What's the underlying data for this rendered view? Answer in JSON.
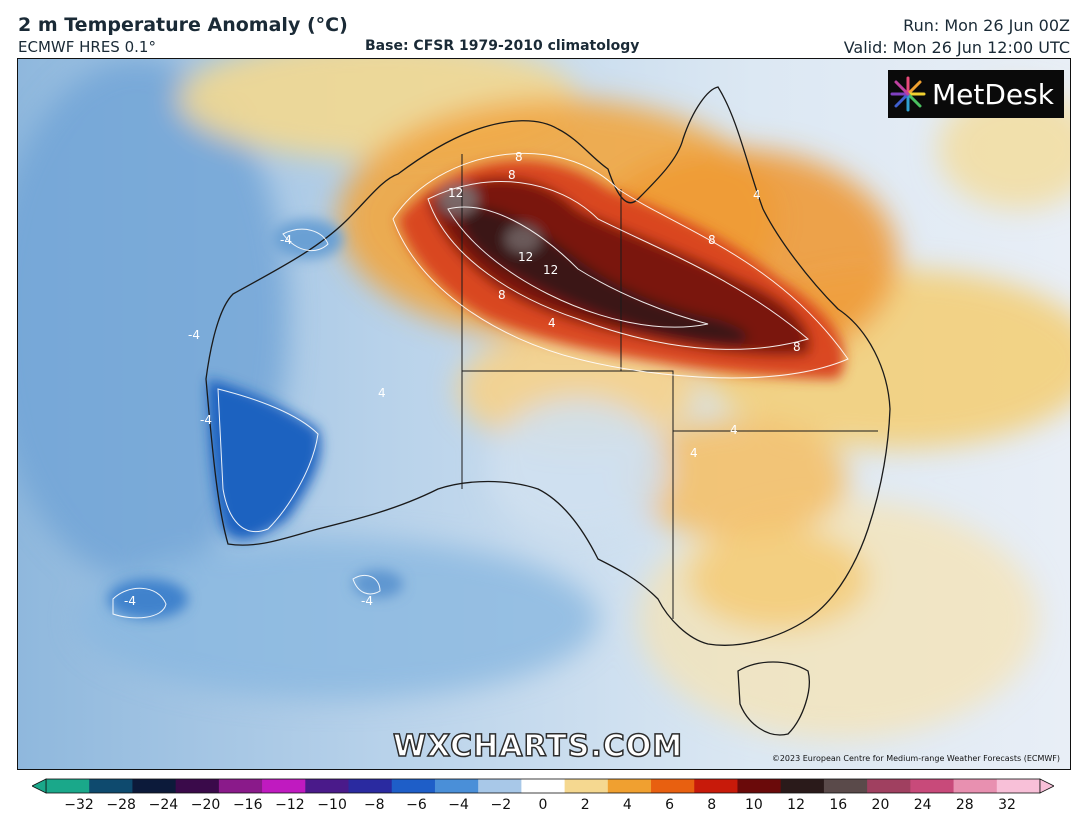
{
  "header": {
    "title": "2 m Temperature Anomaly (°C)",
    "model": "ECMWF HRES 0.1°",
    "base": "Base: CFSR 1979-2010 climatology",
    "run": "Run: Mon 26 Jun 00Z",
    "valid": "Valid: Mon 26 Jun 12:00 UTC"
  },
  "logo": {
    "text": "MetDesk",
    "icon": "metdesk-burst-icon"
  },
  "watermark": "WXCHARTS.COM",
  "credit": "©2023 European Centre for Medium-range Weather Forecasts (ECMWF)",
  "contour_labels": [
    "12",
    "8",
    "8",
    "12",
    "12",
    "8",
    "4",
    "8",
    "8",
    "4",
    "4",
    "4",
    "4",
    "-4",
    "-4",
    "-4",
    "-4",
    "-4"
  ],
  "colorbar": {
    "ticks": [
      "−32",
      "−28",
      "−24",
      "−20",
      "−16",
      "−12",
      "−10",
      "−8",
      "−6",
      "−4",
      "−2",
      "0",
      "2",
      "4",
      "6",
      "8",
      "10",
      "12",
      "16",
      "20",
      "24",
      "28",
      "32"
    ],
    "colors": [
      "#1aa88a",
      "#0e4a6e",
      "#0c1a3a",
      "#3a0a4a",
      "#8a1a8a",
      "#c01ac0",
      "#4a1a8a",
      "#2a2aa0",
      "#1e5ec8",
      "#4a8fd8",
      "#a8c8e8",
      "#ffffff",
      "#f5d890",
      "#f0a030",
      "#e86010",
      "#c81a0a",
      "#6a0a0a",
      "#2a1a1a",
      "#5a4a4a",
      "#a04060",
      "#c84a7a",
      "#e890b0",
      "#f8c0d8"
    ]
  }
}
